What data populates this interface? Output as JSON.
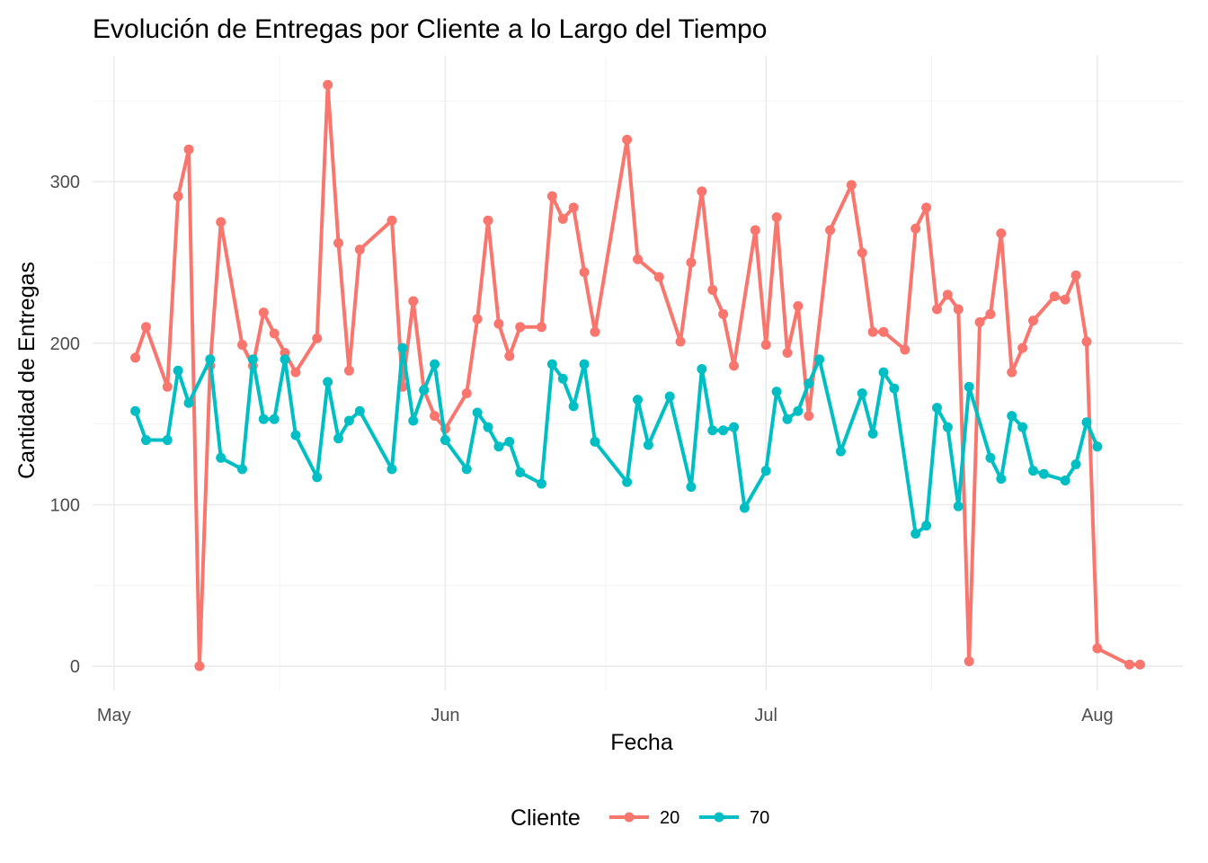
{
  "chart_data": {
    "type": "line",
    "title": "Evolución de Entregas por Cliente a lo Largo del Tiempo",
    "xlabel": "Fecha",
    "ylabel": "Cantidad de Entregas",
    "x_ticks": [
      {
        "date": "2024-05-01",
        "label": "May"
      },
      {
        "date": "2024-06-01",
        "label": "Jun"
      },
      {
        "date": "2024-07-01",
        "label": "Jul"
      },
      {
        "date": "2024-08-01",
        "label": "Aug"
      }
    ],
    "y_ticks": [
      0,
      100,
      200,
      300
    ],
    "xlim": [
      "2024-04-29",
      "2024-08-09"
    ],
    "ylim": [
      -15,
      378
    ],
    "grid": true,
    "legend": {
      "title": "Cliente",
      "position": "bottom"
    },
    "series": [
      {
        "name": "20",
        "color": "#F8766D",
        "points": [
          [
            "2024-05-03",
            191
          ],
          [
            "2024-05-04",
            210
          ],
          [
            "2024-05-06",
            173
          ],
          [
            "2024-05-07",
            291
          ],
          [
            "2024-05-08",
            320
          ],
          [
            "2024-05-09",
            0
          ],
          [
            "2024-05-10",
            186
          ],
          [
            "2024-05-11",
            275
          ],
          [
            "2024-05-13",
            199
          ],
          [
            "2024-05-14",
            186
          ],
          [
            "2024-05-15",
            219
          ],
          [
            "2024-05-16",
            206
          ],
          [
            "2024-05-17",
            194
          ],
          [
            "2024-05-18",
            182
          ],
          [
            "2024-05-20",
            203
          ],
          [
            "2024-05-21",
            360
          ],
          [
            "2024-05-22",
            262
          ],
          [
            "2024-05-23",
            183
          ],
          [
            "2024-05-24",
            258
          ],
          [
            "2024-05-27",
            276
          ],
          [
            "2024-05-28",
            173
          ],
          [
            "2024-05-29",
            226
          ],
          [
            "2024-05-30",
            171
          ],
          [
            "2024-05-31",
            155
          ],
          [
            "2024-06-01",
            147
          ],
          [
            "2024-06-03",
            169
          ],
          [
            "2024-06-04",
            215
          ],
          [
            "2024-06-05",
            276
          ],
          [
            "2024-06-06",
            212
          ],
          [
            "2024-06-07",
            192
          ],
          [
            "2024-06-08",
            210
          ],
          [
            "2024-06-10",
            210
          ],
          [
            "2024-06-11",
            291
          ],
          [
            "2024-06-12",
            277
          ],
          [
            "2024-06-13",
            284
          ],
          [
            "2024-06-14",
            244
          ],
          [
            "2024-06-15",
            207
          ],
          [
            "2024-06-18",
            326
          ],
          [
            "2024-06-19",
            252
          ],
          [
            "2024-06-21",
            241
          ],
          [
            "2024-06-23",
            201
          ],
          [
            "2024-06-24",
            250
          ],
          [
            "2024-06-25",
            294
          ],
          [
            "2024-06-26",
            233
          ],
          [
            "2024-06-27",
            218
          ],
          [
            "2024-06-28",
            186
          ],
          [
            "2024-06-30",
            270
          ],
          [
            "2024-07-01",
            199
          ],
          [
            "2024-07-02",
            278
          ],
          [
            "2024-07-03",
            194
          ],
          [
            "2024-07-04",
            223
          ],
          [
            "2024-07-05",
            155
          ],
          [
            "2024-07-07",
            270
          ],
          [
            "2024-07-09",
            298
          ],
          [
            "2024-07-10",
            256
          ],
          [
            "2024-07-11",
            207
          ],
          [
            "2024-07-12",
            207
          ],
          [
            "2024-07-14",
            196
          ],
          [
            "2024-07-15",
            271
          ],
          [
            "2024-07-16",
            284
          ],
          [
            "2024-07-17",
            221
          ],
          [
            "2024-07-18",
            230
          ],
          [
            "2024-07-19",
            221
          ],
          [
            "2024-07-20",
            3
          ],
          [
            "2024-07-21",
            213
          ],
          [
            "2024-07-22",
            218
          ],
          [
            "2024-07-23",
            268
          ],
          [
            "2024-07-24",
            182
          ],
          [
            "2024-07-25",
            197
          ],
          [
            "2024-07-26",
            214
          ],
          [
            "2024-07-28",
            229
          ],
          [
            "2024-07-29",
            227
          ],
          [
            "2024-07-30",
            242
          ],
          [
            "2024-07-31",
            201
          ],
          [
            "2024-08-01",
            11
          ],
          [
            "2024-08-04",
            1
          ],
          [
            "2024-08-05",
            1
          ]
        ]
      },
      {
        "name": "70",
        "color": "#00BFC4",
        "points": [
          [
            "2024-05-03",
            158
          ],
          [
            "2024-05-04",
            140
          ],
          [
            "2024-05-06",
            140
          ],
          [
            "2024-05-07",
            183
          ],
          [
            "2024-05-08",
            163
          ],
          [
            "2024-05-10",
            190
          ],
          [
            "2024-05-11",
            129
          ],
          [
            "2024-05-13",
            122
          ],
          [
            "2024-05-14",
            190
          ],
          [
            "2024-05-15",
            153
          ],
          [
            "2024-05-16",
            153
          ],
          [
            "2024-05-17",
            190
          ],
          [
            "2024-05-18",
            143
          ],
          [
            "2024-05-20",
            117
          ],
          [
            "2024-05-21",
            176
          ],
          [
            "2024-05-22",
            141
          ],
          [
            "2024-05-23",
            152
          ],
          [
            "2024-05-24",
            158
          ],
          [
            "2024-05-27",
            122
          ],
          [
            "2024-05-28",
            197
          ],
          [
            "2024-05-29",
            152
          ],
          [
            "2024-05-30",
            171
          ],
          [
            "2024-05-31",
            187
          ],
          [
            "2024-06-01",
            140
          ],
          [
            "2024-06-03",
            122
          ],
          [
            "2024-06-04",
            157
          ],
          [
            "2024-06-05",
            148
          ],
          [
            "2024-06-06",
            136
          ],
          [
            "2024-06-07",
            139
          ],
          [
            "2024-06-08",
            120
          ],
          [
            "2024-06-10",
            113
          ],
          [
            "2024-06-11",
            187
          ],
          [
            "2024-06-12",
            178
          ],
          [
            "2024-06-13",
            161
          ],
          [
            "2024-06-14",
            187
          ],
          [
            "2024-06-15",
            139
          ],
          [
            "2024-06-18",
            114
          ],
          [
            "2024-06-19",
            165
          ],
          [
            "2024-06-20",
            137
          ],
          [
            "2024-06-22",
            167
          ],
          [
            "2024-06-24",
            111
          ],
          [
            "2024-06-25",
            184
          ],
          [
            "2024-06-26",
            146
          ],
          [
            "2024-06-27",
            146
          ],
          [
            "2024-06-28",
            148
          ],
          [
            "2024-06-29",
            98
          ],
          [
            "2024-07-01",
            121
          ],
          [
            "2024-07-02",
            170
          ],
          [
            "2024-07-03",
            153
          ],
          [
            "2024-07-04",
            158
          ],
          [
            "2024-07-05",
            175
          ],
          [
            "2024-07-06",
            190
          ],
          [
            "2024-07-08",
            133
          ],
          [
            "2024-07-10",
            169
          ],
          [
            "2024-07-11",
            144
          ],
          [
            "2024-07-12",
            182
          ],
          [
            "2024-07-13",
            172
          ],
          [
            "2024-07-15",
            82
          ],
          [
            "2024-07-16",
            87
          ],
          [
            "2024-07-17",
            160
          ],
          [
            "2024-07-18",
            148
          ],
          [
            "2024-07-19",
            99
          ],
          [
            "2024-07-20",
            173
          ],
          [
            "2024-07-22",
            129
          ],
          [
            "2024-07-23",
            116
          ],
          [
            "2024-07-24",
            155
          ],
          [
            "2024-07-25",
            148
          ],
          [
            "2024-07-26",
            121
          ],
          [
            "2024-07-27",
            119
          ],
          [
            "2024-07-29",
            115
          ],
          [
            "2024-07-30",
            125
          ],
          [
            "2024-07-31",
            151
          ],
          [
            "2024-08-01",
            136
          ]
        ]
      }
    ]
  }
}
